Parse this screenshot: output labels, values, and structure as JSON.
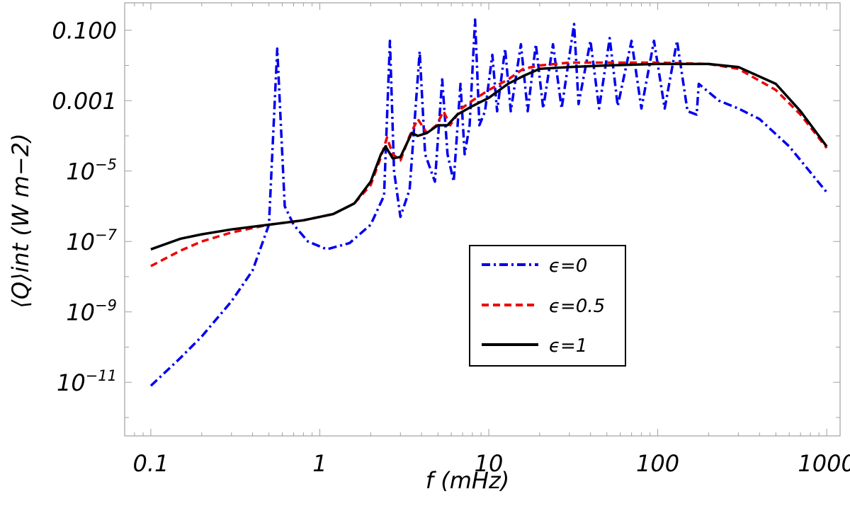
{
  "chart_data": {
    "type": "line",
    "xscale": "log",
    "yscale": "log",
    "xlim": [
      0.07,
      1200
    ],
    "ylim": [
      3e-13,
      0.6
    ],
    "xlabel": "f (mHz)",
    "ylabel": "⟨Q⟩int (W m−2)",
    "grid": false,
    "legend_position": "center-right",
    "x_ticks": [
      {
        "value": 0.1,
        "label": "0.1"
      },
      {
        "value": 1,
        "label": "1"
      },
      {
        "value": 10,
        "label": "10"
      },
      {
        "value": 100,
        "label": "100"
      },
      {
        "value": 1000,
        "label": "1000"
      }
    ],
    "y_ticks": [
      {
        "value": 1e-11,
        "base": "10",
        "exp": "−11",
        "label": ""
      },
      {
        "value": 1e-09,
        "base": "10",
        "exp": "−9",
        "label": ""
      },
      {
        "value": 1e-07,
        "base": "10",
        "exp": "−7",
        "label": ""
      },
      {
        "value": 1e-05,
        "base": "10",
        "exp": "−5",
        "label": ""
      },
      {
        "value": 0.001,
        "base": "",
        "exp": "",
        "label": "0.001"
      },
      {
        "value": 0.1,
        "base": "",
        "exp": "",
        "label": "0.100"
      }
    ],
    "series": [
      {
        "name": "ϵ=0",
        "color": "#0000ee",
        "dash": "dash-dot",
        "points": [
          [
            0.1,
            8e-12
          ],
          [
            0.15,
            5e-11
          ],
          [
            0.2,
            2e-10
          ],
          [
            0.3,
            2e-09
          ],
          [
            0.4,
            1.5e-08
          ],
          [
            0.5,
            3e-07
          ],
          [
            0.56,
            0.03
          ],
          [
            0.62,
            1e-06
          ],
          [
            0.7,
            3e-07
          ],
          [
            0.85,
            1e-07
          ],
          [
            1.1,
            6e-08
          ],
          [
            1.5,
            9e-08
          ],
          [
            2.0,
            3e-07
          ],
          [
            2.4,
            2e-06
          ],
          [
            2.6,
            0.05
          ],
          [
            2.75,
            1e-05
          ],
          [
            3.0,
            5e-07
          ],
          [
            3.4,
            3e-06
          ],
          [
            3.9,
            0.025
          ],
          [
            4.2,
            3e-05
          ],
          [
            4.8,
            5e-06
          ],
          [
            5.3,
            0.004
          ],
          [
            5.7,
            3e-05
          ],
          [
            6.2,
            5e-06
          ],
          [
            6.8,
            0.003
          ],
          [
            7.2,
            3e-05
          ],
          [
            7.7,
            0.0002
          ],
          [
            8.3,
            0.2
          ],
          [
            8.8,
            0.0002
          ],
          [
            9.5,
            0.0005
          ],
          [
            10.5,
            0.02
          ],
          [
            11.2,
            0.0005
          ],
          [
            12.5,
            0.03
          ],
          [
            13.5,
            0.0005
          ],
          [
            15.5,
            0.04
          ],
          [
            17,
            0.0005
          ],
          [
            19,
            0.04
          ],
          [
            21,
            0.0006
          ],
          [
            24,
            0.04
          ],
          [
            27,
            0.0006
          ],
          [
            32,
            0.15
          ],
          [
            34,
            0.0008
          ],
          [
            40,
            0.05
          ],
          [
            45,
            0.0006
          ],
          [
            52,
            0.06
          ],
          [
            58,
            0.0007
          ],
          [
            70,
            0.05
          ],
          [
            80,
            0.0006
          ],
          [
            95,
            0.05
          ],
          [
            110,
            0.0006
          ],
          [
            130,
            0.05
          ],
          [
            150,
            0.0005
          ],
          [
            170,
            0.0004
          ],
          [
            175,
            0.003
          ],
          [
            230,
            0.001
          ],
          [
            300,
            0.0006
          ],
          [
            400,
            0.0003
          ],
          [
            600,
            5e-05
          ],
          [
            1000,
            2.5e-06
          ]
        ]
      },
      {
        "name": "ϵ=0.5",
        "color": "#ee0000",
        "dash": "dashed",
        "points": [
          [
            0.1,
            2e-08
          ],
          [
            0.15,
            5.5e-08
          ],
          [
            0.2,
            1e-07
          ],
          [
            0.3,
            1.8e-07
          ],
          [
            0.5,
            3e-07
          ],
          [
            0.8,
            4e-07
          ],
          [
            1.2,
            6e-07
          ],
          [
            1.6,
            1.2e-06
          ],
          [
            2.0,
            4e-06
          ],
          [
            2.3,
            2.5e-05
          ],
          [
            2.5,
            9e-05
          ],
          [
            2.7,
            3e-05
          ],
          [
            3.0,
            2e-05
          ],
          [
            3.4,
            0.0001
          ],
          [
            3.8,
            0.0003
          ],
          [
            4.3,
            0.00012
          ],
          [
            4.9,
            0.0002
          ],
          [
            5.4,
            0.0005
          ],
          [
            5.9,
            0.0002
          ],
          [
            6.9,
            0.0006
          ],
          [
            8,
            0.001
          ],
          [
            10,
            0.002
          ],
          [
            13,
            0.004
          ],
          [
            16,
            0.008
          ],
          [
            20,
            0.01
          ],
          [
            30,
            0.012
          ],
          [
            50,
            0.012
          ],
          [
            100,
            0.012
          ],
          [
            200,
            0.011
          ],
          [
            300,
            0.008
          ],
          [
            500,
            0.002
          ],
          [
            700,
            0.0004
          ],
          [
            1000,
            4.5e-05
          ]
        ]
      },
      {
        "name": "ϵ=1",
        "color": "#000000",
        "dash": "solid",
        "points": [
          [
            0.1,
            6e-08
          ],
          [
            0.15,
            1.2e-07
          ],
          [
            0.2,
            1.6e-07
          ],
          [
            0.3,
            2.2e-07
          ],
          [
            0.5,
            3e-07
          ],
          [
            0.8,
            4e-07
          ],
          [
            1.2,
            6e-07
          ],
          [
            1.6,
            1.2e-06
          ],
          [
            2.0,
            5e-06
          ],
          [
            2.3,
            3e-05
          ],
          [
            2.45,
            5e-05
          ],
          [
            2.7,
            2.3e-05
          ],
          [
            3.0,
            2.5e-05
          ],
          [
            3.5,
            0.00012
          ],
          [
            3.8,
            0.0001
          ],
          [
            4.3,
            0.00012
          ],
          [
            5.0,
            0.0002
          ],
          [
            5.7,
            0.0002
          ],
          [
            6.5,
            0.0004
          ],
          [
            8,
            0.0007
          ],
          [
            10,
            0.0012
          ],
          [
            13,
            0.003
          ],
          [
            16,
            0.005
          ],
          [
            20,
            0.008
          ],
          [
            30,
            0.009
          ],
          [
            50,
            0.01
          ],
          [
            100,
            0.011
          ],
          [
            200,
            0.011
          ],
          [
            300,
            0.009
          ],
          [
            500,
            0.003
          ],
          [
            700,
            0.0005
          ],
          [
            1000,
            5e-05
          ]
        ]
      }
    ]
  }
}
